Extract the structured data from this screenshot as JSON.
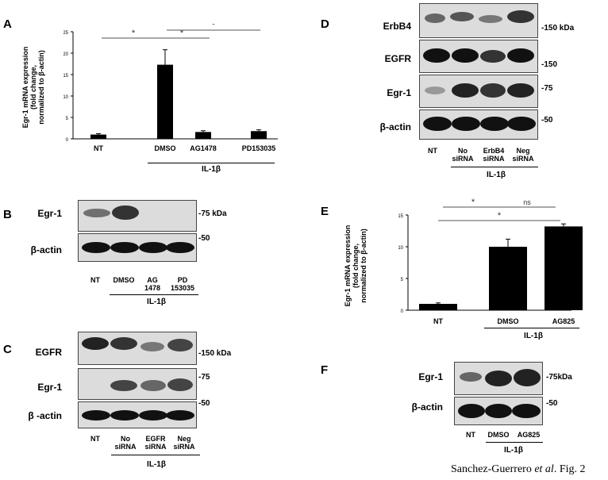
{
  "credit": {
    "name": "Sanchez-Guerrero ",
    "etal": "et al",
    "rest": ". Fig. 2"
  },
  "panels": {
    "A": {
      "letter": "A",
      "ylabel": [
        "Egr-1 mRNA expression",
        "(fold change,",
        "normalized to β-actin)"
      ],
      "treatment_label": "IL-1β",
      "significance": [
        "*",
        "*",
        "*"
      ]
    },
    "B": {
      "letter": "B",
      "rows": [
        "Egr-1",
        "β-actin"
      ],
      "kda": [
        "-75 kDa",
        "-50"
      ],
      "lanes": [
        "NT",
        "DMSO",
        "AG\n1478",
        "PD\n153035"
      ],
      "treatment_label": "IL-1β"
    },
    "C": {
      "letter": "C",
      "rows": [
        "EGFR",
        "Egr-1",
        "β -actin"
      ],
      "kda": [
        "-150 kDa",
        "-75",
        "-50"
      ],
      "lanes": [
        "NT",
        "No\nsiRNA",
        "EGFR\nsiRNA",
        "Neg\nsiRNA"
      ],
      "treatment_label": "IL-1β"
    },
    "D": {
      "letter": "D",
      "rows": [
        "ErbB4",
        "EGFR",
        "Egr-1",
        "β-actin"
      ],
      "kda": [
        "-150 kDa",
        "-150",
        "-75",
        "-50"
      ],
      "lanes": [
        "NT",
        "No\nsiRNA",
        "ErbB4\nsiRNA",
        "Neg\nsiRNA"
      ],
      "treatment_label": "IL-1β"
    },
    "E": {
      "letter": "E",
      "ylabel": [
        "Egr-1 mRNA expression",
        "(fold change,",
        "normalized to β-actin)"
      ],
      "treatment_label": "IL-1β",
      "significance": [
        "*",
        "ns",
        "*"
      ]
    },
    "F": {
      "letter": "F",
      "rows": [
        "Egr-1",
        "β-actin"
      ],
      "kda": [
        "-75kDa",
        "-50"
      ],
      "lanes": [
        "NT",
        "DMSO",
        "AG825"
      ],
      "treatment_label": "IL-1β"
    }
  },
  "chart_data": [
    {
      "type": "bar",
      "panel": "A",
      "categories": [
        "NT",
        "DMSO",
        "AG1478",
        "PD153035"
      ],
      "values": [
        1.0,
        17.3,
        1.6,
        1.8
      ],
      "errors": [
        0.2,
        3.5,
        0.3,
        0.3
      ],
      "ylim": [
        0,
        25
      ],
      "yticks": [
        0,
        5,
        10,
        15,
        20,
        25
      ],
      "color": "#000000"
    },
    {
      "type": "bar",
      "panel": "E",
      "categories": [
        "NT",
        "DMSO",
        "AG825"
      ],
      "values": [
        1.0,
        10.0,
        13.2
      ],
      "errors": [
        0.15,
        1.2,
        0.4
      ],
      "ylim": [
        0,
        15
      ],
      "yticks": [
        0,
        5,
        10,
        15
      ],
      "color": "#000000"
    }
  ]
}
